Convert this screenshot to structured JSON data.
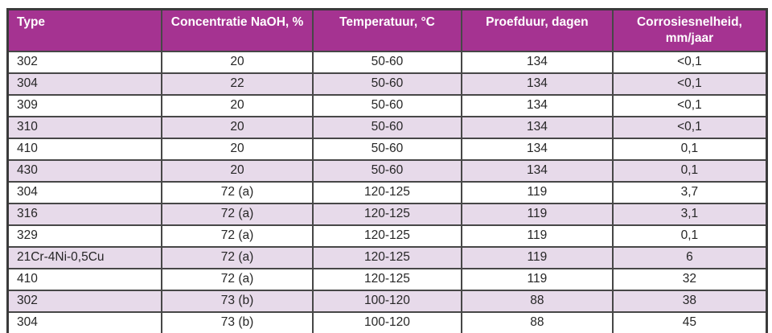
{
  "colors": {
    "page_bg": "#ffffff",
    "header_bg": "#a53391",
    "header_text": "#ffffff",
    "row_bg": "#ffffff",
    "row_alt_bg": "#e7daea",
    "border_outer": "#3a3a3a",
    "border_inner": "#474747",
    "cell_text": "#262626"
  },
  "table": {
    "columns": [
      {
        "label": "Type"
      },
      {
        "label": "Concentratie NaOH, %"
      },
      {
        "label": "Temperatuur, °C"
      },
      {
        "label": "Proefduur, dagen"
      },
      {
        "label": "Corrosiesnelheid, mm/jaar"
      }
    ],
    "rows": [
      [
        "302",
        "20",
        "50-60",
        "134",
        "<0,1"
      ],
      [
        "304",
        "22",
        "50-60",
        "134",
        "<0,1"
      ],
      [
        "309",
        "20",
        "50-60",
        "134",
        "<0,1"
      ],
      [
        "310",
        "20",
        "50-60",
        "134",
        "<0,1"
      ],
      [
        "410",
        "20",
        "50-60",
        "134",
        "0,1"
      ],
      [
        "430",
        "20",
        "50-60",
        "134",
        "0,1"
      ],
      [
        "304",
        "72 (a)",
        "120-125",
        "119",
        "3,7"
      ],
      [
        "316",
        "72 (a)",
        "120-125",
        "119",
        "3,1"
      ],
      [
        "329",
        "72 (a)",
        "120-125",
        "119",
        "0,1"
      ],
      [
        "21Cr-4Ni-0,5Cu",
        "72 (a)",
        "120-125",
        "119",
        "6"
      ],
      [
        "410",
        "72 (a)",
        "120-125",
        "119",
        "32"
      ],
      [
        "302",
        "73 (b)",
        "100-120",
        "88",
        "38"
      ],
      [
        "304",
        "73 (b)",
        "100-120",
        "88",
        "45"
      ]
    ]
  },
  "chart_data": {
    "type": "table",
    "title": "",
    "columns": [
      "Type",
      "Concentratie NaOH, %",
      "Temperatuur, °C",
      "Proefduur, dagen",
      "Corrosiesnelheid, mm/jaar"
    ],
    "rows": [
      [
        "302",
        "20",
        "50-60",
        "134",
        "<0,1"
      ],
      [
        "304",
        "22",
        "50-60",
        "134",
        "<0,1"
      ],
      [
        "309",
        "20",
        "50-60",
        "134",
        "<0,1"
      ],
      [
        "310",
        "20",
        "50-60",
        "134",
        "<0,1"
      ],
      [
        "410",
        "20",
        "50-60",
        "134",
        "0,1"
      ],
      [
        "430",
        "20",
        "50-60",
        "134",
        "0,1"
      ],
      [
        "304",
        "72 (a)",
        "120-125",
        "119",
        "3,7"
      ],
      [
        "316",
        "72 (a)",
        "120-125",
        "119",
        "3,1"
      ],
      [
        "329",
        "72 (a)",
        "120-125",
        "119",
        "0,1"
      ],
      [
        "21Cr-4Ni-0,5Cu",
        "72 (a)",
        "120-125",
        "119",
        "6"
      ],
      [
        "410",
        "72 (a)",
        "120-125",
        "119",
        "32"
      ],
      [
        "302",
        "73 (b)",
        "100-120",
        "88",
        "38"
      ],
      [
        "304",
        "73 (b)",
        "100-120",
        "88",
        "45"
      ]
    ]
  }
}
